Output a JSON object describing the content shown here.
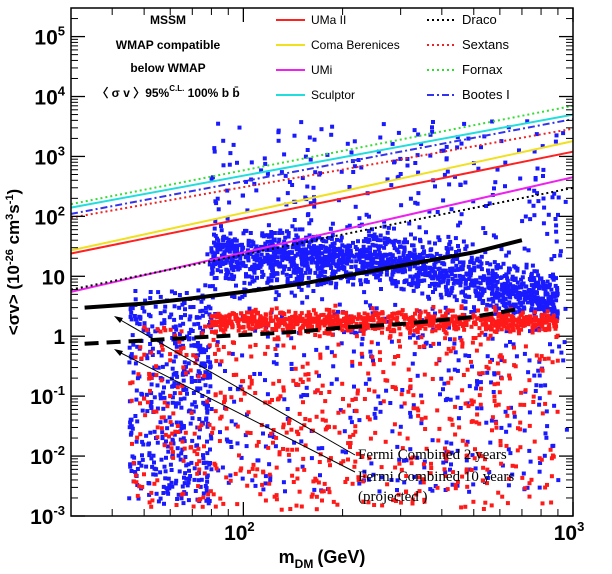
{
  "chart_data": {
    "type": "scatter",
    "title": "",
    "xlabel": "m",
    "xlabel_sub": "DM",
    "xlabel_unit": "(GeV)",
    "ylabel": "<σv> (10",
    "ylabel_exp1": "-26",
    "ylabel_mid": " cm",
    "ylabel_exp2": "3",
    "ylabel_mid2": "s",
    "ylabel_exp3": "-1",
    "ylabel_end": ")",
    "xscale": "log",
    "yscale": "log",
    "xlim": [
      30,
      1000
    ],
    "ylim": [
      0.001,
      300000
    ],
    "x_ticks": [
      {
        "value": 100,
        "base": "10",
        "exp": "2"
      },
      {
        "value": 1000,
        "base": "10",
        "exp": "3"
      }
    ],
    "y_ticks": [
      {
        "value": 0.001,
        "base": "10",
        "exp": "-3"
      },
      {
        "value": 0.01,
        "base": "10",
        "exp": "-2"
      },
      {
        "value": 0.1,
        "base": "10",
        "exp": "-1"
      },
      {
        "value": 1,
        "base": "1",
        "exp": ""
      },
      {
        "value": 10,
        "base": "10",
        "exp": ""
      },
      {
        "value": 100,
        "base": "10",
        "exp": "2"
      },
      {
        "value": 1000,
        "base": "10",
        "exp": "3"
      },
      {
        "value": 10000,
        "base": "10",
        "exp": "4"
      },
      {
        "value": 100000,
        "base": "10",
        "exp": "5"
      }
    ],
    "scatter_legend": [
      {
        "name": "MSSM",
        "color": "#000000"
      },
      {
        "name": "WMAP compatible",
        "color": "#ff1a1a"
      },
      {
        "name": "below WMAP",
        "color": "#1a1aff"
      }
    ],
    "scatter_legend_extra": {
      "text": "〈 σ v 〉95%",
      "sup": "C.L.",
      "tail": " 100% b b̄",
      "color": "#33cc33"
    },
    "series": [
      {
        "name": "UMa II",
        "color": "#ff2020",
        "dash": "solid",
        "x": [
          30,
          1000
        ],
        "y": [
          24,
          1200
        ]
      },
      {
        "name": "Coma Berenices",
        "color": "#f0e020",
        "dash": "solid",
        "x": [
          30,
          1000
        ],
        "y": [
          27,
          1800
        ]
      },
      {
        "name": "UMi",
        "color": "#ee22ee",
        "dash": "solid",
        "x": [
          30,
          1000
        ],
        "y": [
          5.5,
          450
        ]
      },
      {
        "name": "Sculptor",
        "color": "#22dddd",
        "dash": "solid",
        "x": [
          30,
          1000
        ],
        "y": [
          140,
          5000
        ]
      },
      {
        "name": "Draco",
        "color": "#000000",
        "dash": "dotted",
        "x": [
          30,
          1000
        ],
        "y": [
          6,
          300
        ]
      },
      {
        "name": "Sextans",
        "color": "#ee2222",
        "dash": "dotted",
        "x": [
          30,
          1000
        ],
        "y": [
          95,
          2900
        ]
      },
      {
        "name": "Fornax",
        "color": "#33dd33",
        "dash": "dotted",
        "x": [
          30,
          1000
        ],
        "y": [
          160,
          7000
        ]
      },
      {
        "name": "Bootes I",
        "color": "#3333ee",
        "dash": "dashdot",
        "x": [
          30,
          1000
        ],
        "y": [
          110,
          4200
        ]
      }
    ],
    "limit_curves": [
      {
        "name": "Fermi Combined 2 years",
        "color": "#000000",
        "dash": "solid",
        "x": [
          33,
          50,
          70,
          100,
          150,
          200,
          300,
          500,
          700
        ],
        "y": [
          3.0,
          3.5,
          4.3,
          5.5,
          7.5,
          10,
          15,
          25,
          40
        ]
      },
      {
        "name": "Fermi Combined 10 years",
        "name2": "(projected )",
        "color": "#000000",
        "dash": "dashed",
        "x": [
          33,
          50,
          70,
          100,
          150,
          200,
          300,
          500,
          700
        ],
        "y": [
          0.75,
          0.85,
          0.95,
          1.05,
          1.2,
          1.4,
          1.6,
          2.1,
          2.9
        ]
      }
    ],
    "annotations": [
      {
        "text": "Fermi Combined 2 years",
        "arrow_to": {
          "x": 38,
          "y": 3.0
        }
      },
      {
        "text": "Fermi Combined 10 years",
        "arrow_to": {
          "x": 38,
          "y": 0.75
        }
      },
      {
        "text": "(projected )"
      }
    ],
    "grid": false,
    "legend_position": "top-left and top-right inset"
  }
}
